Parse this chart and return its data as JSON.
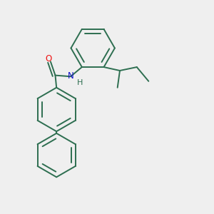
{
  "bg_color": "#efefef",
  "bond_color": "#2d6e50",
  "atom_colors": {
    "O": "#ee1111",
    "N": "#1111cc",
    "H": "#2d6e50"
  },
  "bond_width": 1.4,
  "font_size_atom": 8.5
}
